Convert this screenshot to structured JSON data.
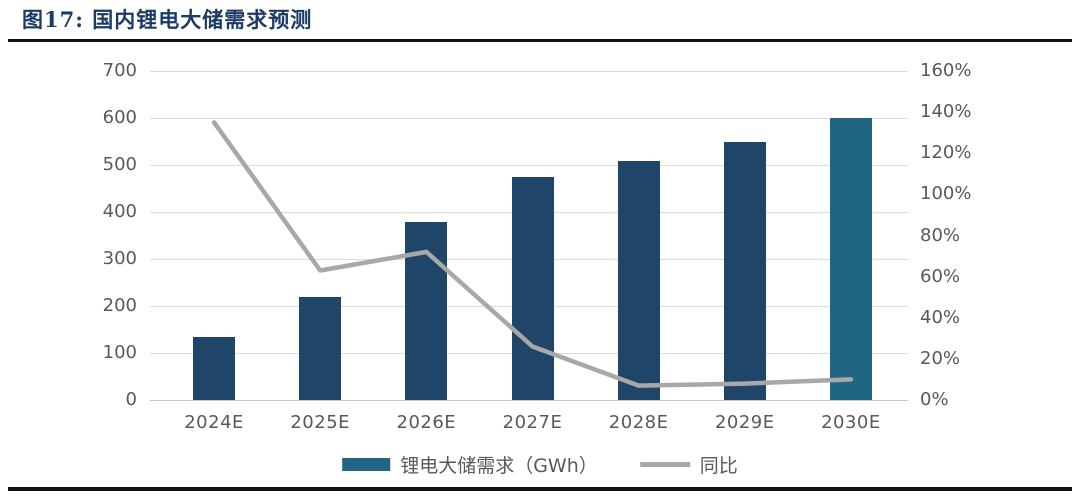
{
  "header": {
    "title": "图17:  国内锂电大储需求预测"
  },
  "colors": {
    "title": "#1b3a66",
    "bar": "#1f4568",
    "bar_highlight": "#206581",
    "line": "#a8a8a8",
    "grid": "#dcdcdc",
    "axis_line": "#c6c6c6",
    "tick_text": "#595959",
    "rule": "#111111"
  },
  "chart_data": {
    "type": "bar",
    "title": "国内锂电大储需求预测",
    "categories": [
      "2024E",
      "2025E",
      "2026E",
      "2027E",
      "2028E",
      "2029E",
      "2030E"
    ],
    "series": [
      {
        "name": "锂电大储需求（GWh）",
        "type": "bar",
        "axis": "left",
        "values": [
          135,
          220,
          378,
          475,
          508,
          548,
          600
        ],
        "color": "#1f4568",
        "highlight_index": 6,
        "highlight_color": "#206581"
      },
      {
        "name": "同比",
        "type": "line",
        "axis": "right",
        "unit": "%",
        "values": [
          135,
          63,
          72,
          26,
          7,
          8,
          10
        ],
        "color": "#a8a8a8"
      }
    ],
    "left_axis": {
      "min": 0,
      "max": 700,
      "step": 100,
      "tick_labels": [
        "0",
        "100",
        "200",
        "300",
        "400",
        "500",
        "600",
        "700"
      ]
    },
    "right_axis": {
      "min": 0,
      "max": 160,
      "step": 20,
      "tick_labels": [
        "0%",
        "20%",
        "40%",
        "60%",
        "80%",
        "100%",
        "120%",
        "140%",
        "160%"
      ]
    },
    "grid": true,
    "legend_position": "bottom"
  },
  "legend": {
    "bar_label": "锂电大储需求（GWh）",
    "line_label": "同比"
  }
}
